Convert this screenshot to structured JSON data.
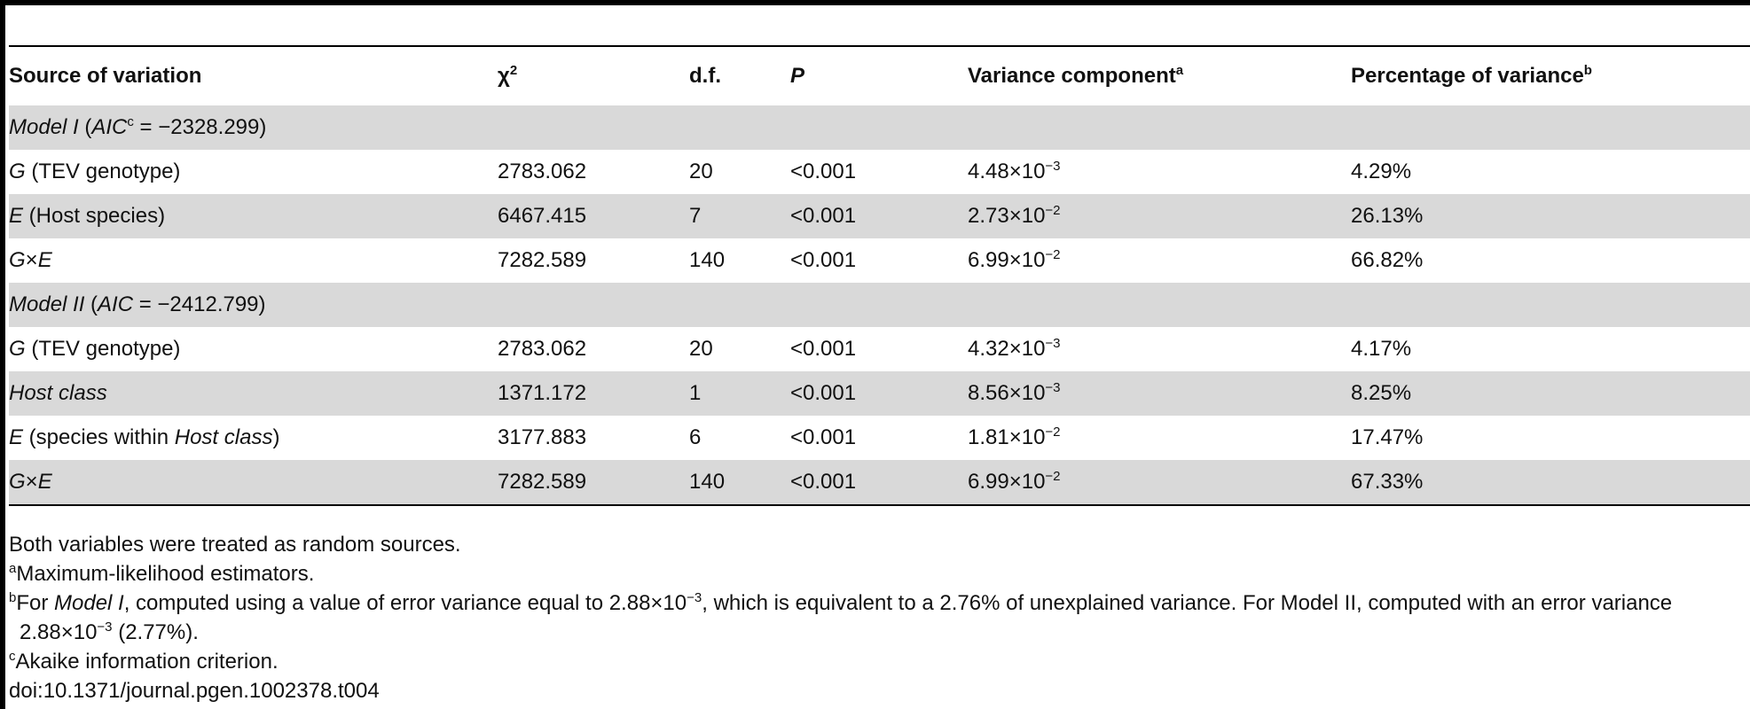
{
  "headers": {
    "source": "Source of variation",
    "chi2": "χ",
    "chi2_sup": "2",
    "df": "d.f.",
    "p": "P",
    "variance": "Variance component",
    "variance_sup": "a",
    "percentage": "Percentage of variance",
    "percentage_sup": "b"
  },
  "model1": {
    "label": "Model I",
    "aic_label": "AIC",
    "aic_sup": "c",
    "aic_value": " = −2328.299)"
  },
  "model2": {
    "label": "Model II",
    "aic_label": "AIC",
    "aic_value": " = −2412.799)"
  },
  "rows": {
    "m1_g": {
      "sym": "G",
      "label": " (TEV genotype)",
      "chi2": "2783.062",
      "df": "20",
      "p": "<0.001",
      "var_base": "4.48×10",
      "var_exp": "−3",
      "pct": "4.29%"
    },
    "m1_e": {
      "sym": "E",
      "label": " (Host species)",
      "chi2": "6467.415",
      "df": "7",
      "p": "<0.001",
      "var_base": "2.73×10",
      "var_exp": "−2",
      "pct": "26.13%"
    },
    "m1_gxe": {
      "sym_g": "G",
      "sym_x": "×",
      "sym_e": "E",
      "chi2": "7282.589",
      "df": "140",
      "p": "<0.001",
      "var_base": "6.99×10",
      "var_exp": "−2",
      "pct": "66.82%"
    },
    "m2_g": {
      "sym": "G",
      "label": " (TEV genotype)",
      "chi2": "2783.062",
      "df": "20",
      "p": "<0.001",
      "var_base": "4.32×10",
      "var_exp": "−3",
      "pct": "4.17%"
    },
    "m2_host": {
      "label": "Host class",
      "chi2": "1371.172",
      "df": "1",
      "p": "<0.001",
      "var_base": "8.56×10",
      "var_exp": "−3",
      "pct": "8.25%"
    },
    "m2_e": {
      "sym": "E",
      "label_a": " (species within ",
      "label_b": "Host class",
      "label_c": ")",
      "chi2": "3177.883",
      "df": "6",
      "p": "<0.001",
      "var_base": "1.81×10",
      "var_exp": "−2",
      "pct": "17.47%"
    },
    "m2_gxe": {
      "sym_g": "G",
      "sym_x": "×",
      "sym_e": "E",
      "chi2": "7282.589",
      "df": "140",
      "p": "<0.001",
      "var_base": "6.99×10",
      "var_exp": "−2",
      "pct": "67.33%"
    }
  },
  "notes": {
    "n0": "Both variables were treated as random sources.",
    "na_sup": "a",
    "na": "Maximum-likelihood estimators.",
    "nb_sup": "b",
    "nb_1": "For ",
    "nb_model": "Model I",
    "nb_2": ", computed using a value of error variance equal to 2.88×10",
    "nb_exp1": "−3",
    "nb_3": ", which is equivalent to a 2.76% of unexplained variance. For Model II, computed with an error variance 2.88×10",
    "nb_exp2": "−3",
    "nb_4": " (2.77%).",
    "nc_sup": "c",
    "nc": "Akaike information criterion.",
    "doi": "doi:10.1371/journal.pgen.1002378.t004"
  }
}
